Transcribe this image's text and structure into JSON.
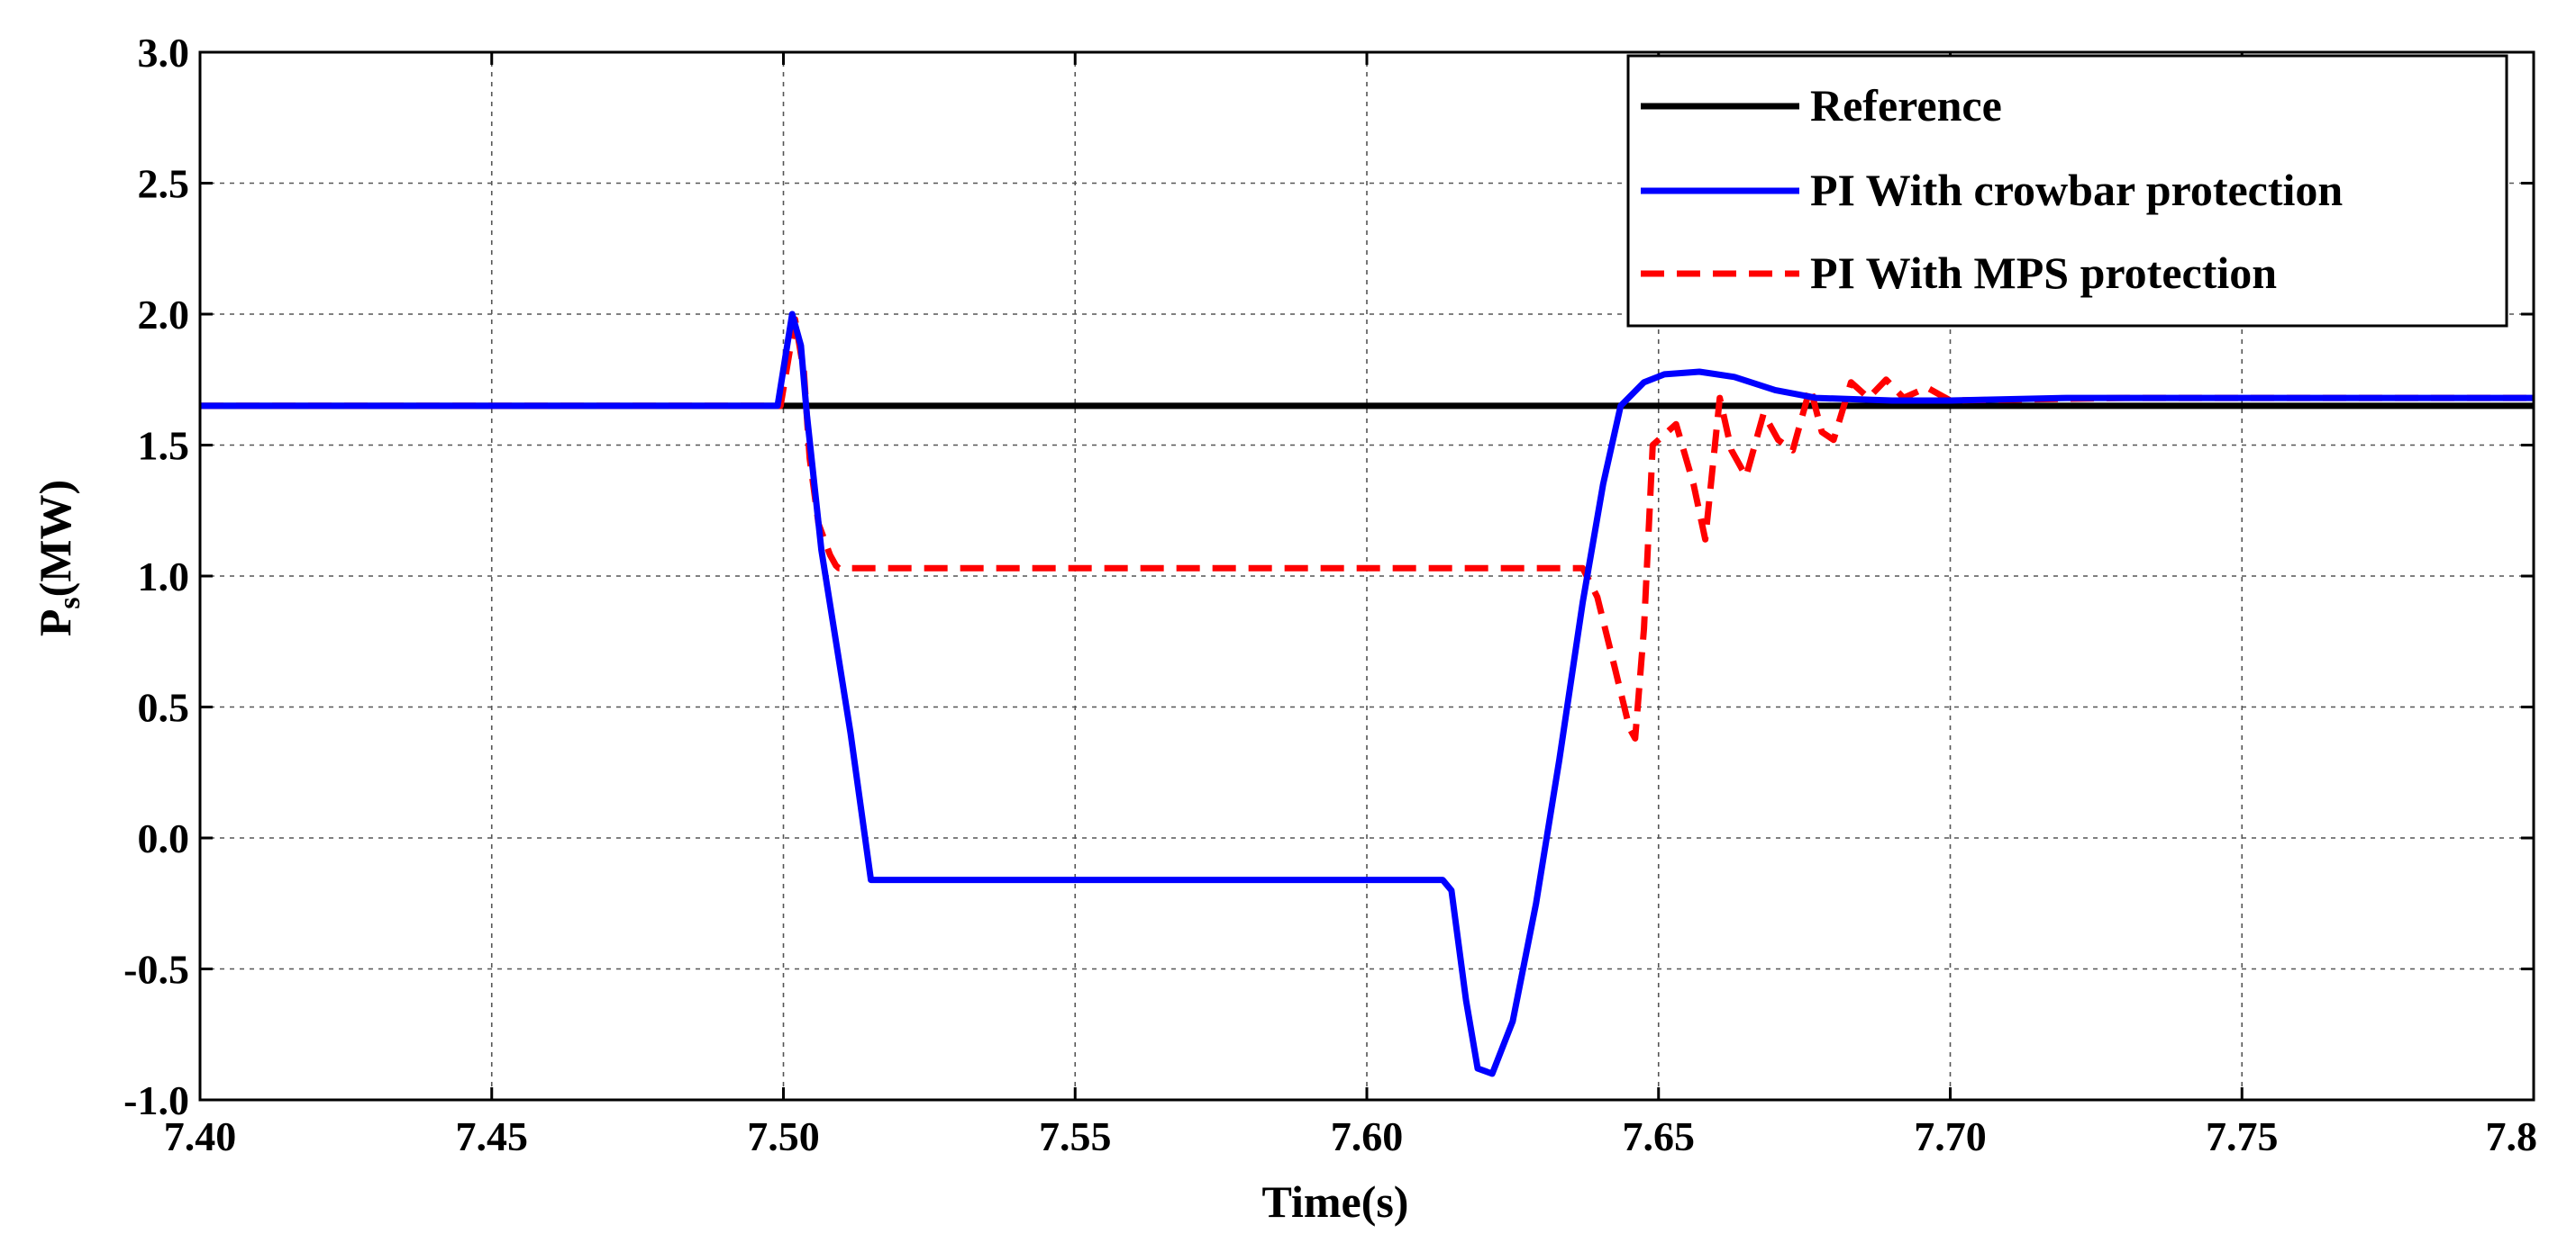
{
  "chart_data": {
    "type": "line",
    "title": "",
    "xlabel": "Time(s)",
    "ylabel_main": "P",
    "ylabel_sub": "s",
    "ylabel_unit": "(MW)",
    "xlim": [
      7.4,
      7.8
    ],
    "ylim": [
      -1.0,
      3.0
    ],
    "grid": true,
    "legend_position": "top-right",
    "x_ticks": [
      7.4,
      7.45,
      7.5,
      7.55,
      7.6,
      7.65,
      7.7,
      7.75,
      7.8
    ],
    "x_tick_labels": [
      "7.40",
      "7.45",
      "7.50",
      "7.55",
      "7.60",
      "7.65",
      "7.70",
      "7.75",
      "7.8"
    ],
    "y_ticks": [
      -1.0,
      -0.5,
      0.0,
      0.5,
      1.0,
      1.5,
      2.0,
      2.5,
      3.0
    ],
    "y_tick_labels": [
      "-1.0",
      "-0.5",
      "0.0",
      "0.5",
      "1.0",
      "1.5",
      "2.0",
      "2.5",
      "3.0"
    ],
    "series": [
      {
        "name": "Reference",
        "color": "#000000",
        "style": "solid",
        "x": [
          7.4,
          7.8
        ],
        "y": [
          1.65,
          1.65
        ]
      },
      {
        "name": "PI With crowbar protection",
        "color": "#0000ff",
        "style": "solid",
        "x": [
          7.4,
          7.499,
          7.5015,
          7.503,
          7.504,
          7.5065,
          7.5115,
          7.515,
          7.613,
          7.6145,
          7.617,
          7.619,
          7.6215,
          7.625,
          7.629,
          7.633,
          7.637,
          7.6405,
          7.6435,
          7.6475,
          7.651,
          7.657,
          7.663,
          7.67,
          7.677,
          7.69,
          7.7,
          7.72,
          7.8
        ],
        "y": [
          1.65,
          1.65,
          2.0,
          1.88,
          1.62,
          1.1,
          0.4,
          -0.16,
          -0.16,
          -0.2,
          -0.62,
          -0.88,
          -0.9,
          -0.7,
          -0.25,
          0.3,
          0.9,
          1.35,
          1.65,
          1.74,
          1.77,
          1.78,
          1.76,
          1.71,
          1.68,
          1.67,
          1.67,
          1.68,
          1.68
        ]
      },
      {
        "name": "PI With MPS protection",
        "color": "#ff0000",
        "style": "dashed",
        "x": [
          7.4,
          7.4995,
          7.502,
          7.5035,
          7.5045,
          7.506,
          7.508,
          7.509,
          7.5095,
          7.637,
          7.6395,
          7.6425,
          7.645,
          7.646,
          7.6475,
          7.649,
          7.653,
          7.656,
          7.658,
          7.6605,
          7.6625,
          7.665,
          7.668,
          7.6705,
          7.673,
          7.676,
          7.678,
          7.68,
          7.683,
          7.686,
          7.689,
          7.692,
          7.696,
          7.7,
          7.73,
          7.8
        ],
        "y": [
          1.65,
          1.65,
          1.98,
          1.78,
          1.45,
          1.2,
          1.08,
          1.04,
          1.03,
          1.03,
          0.92,
          0.65,
          0.42,
          0.38,
          0.8,
          1.5,
          1.58,
          1.35,
          1.14,
          1.68,
          1.48,
          1.38,
          1.62,
          1.52,
          1.48,
          1.72,
          1.55,
          1.52,
          1.74,
          1.68,
          1.75,
          1.68,
          1.72,
          1.67,
          1.68,
          1.68
        ]
      }
    ]
  }
}
